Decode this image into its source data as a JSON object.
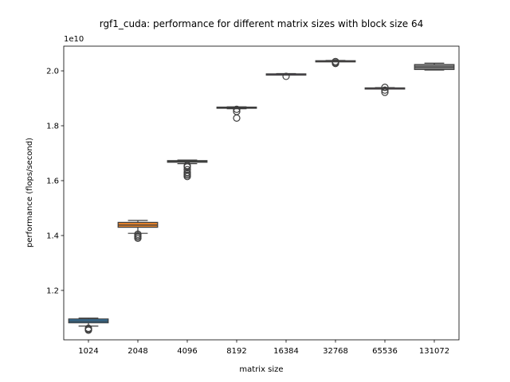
{
  "chart_data": {
    "type": "box",
    "title": "rgf1_cuda: performance for different matrix sizes with block size 64",
    "xlabel": "matrix size",
    "ylabel": "performance (flops/second)",
    "y_offset_label": "1e10",
    "y_scale": 10000000000,
    "ylim": [
      1.02,
      2.09
    ],
    "yticks": [
      {
        "value": 1.2,
        "label": "1.2"
      },
      {
        "value": 1.4,
        "label": "1.4"
      },
      {
        "value": 1.6,
        "label": "1.6"
      },
      {
        "value": 1.8,
        "label": "1.8"
      },
      {
        "value": 2.0,
        "label": "2.0"
      }
    ],
    "grid": false,
    "categories": [
      "1024",
      "2048",
      "4096",
      "8192",
      "16384",
      "32768",
      "65536",
      "131072"
    ],
    "boxes": [
      {
        "category": "1024",
        "color": "#3274a1",
        "whislo": 1.07,
        "q1": 1.082,
        "med": 1.088,
        "q3": 1.096,
        "whishi": 1.099,
        "fliers": [
          1.055,
          1.058,
          1.062
        ]
      },
      {
        "category": "2048",
        "color": "#e1812c",
        "whislo": 1.408,
        "q1": 1.43,
        "med": 1.438,
        "q3": 1.448,
        "whishi": 1.455,
        "fliers": [
          1.39,
          1.395,
          1.4,
          1.405
        ]
      },
      {
        "category": "4096",
        "color": "#3a923a",
        "whislo": 1.662,
        "q1": 1.667,
        "med": 1.67,
        "q3": 1.673,
        "whishi": 1.675,
        "fliers": [
          1.615,
          1.62,
          1.625,
          1.63,
          1.64,
          1.65,
          1.655
        ]
      },
      {
        "category": "8192",
        "color": "#c03d3e",
        "whislo": 1.862,
        "q1": 1.864,
        "med": 1.866,
        "q3": 1.868,
        "whishi": 1.869,
        "fliers": [
          1.828,
          1.852,
          1.86
        ]
      },
      {
        "category": "16384",
        "color": "#9372b2",
        "whislo": 1.986,
        "q1": 1.987,
        "med": 1.988,
        "q3": 1.989,
        "whishi": 1.99,
        "fliers": [
          1.98
        ]
      },
      {
        "category": "32768",
        "color": "#845b53",
        "whislo": 2.034,
        "q1": 2.035,
        "med": 2.036,
        "q3": 2.037,
        "whishi": 2.038,
        "fliers": [
          2.027,
          2.03,
          2.034
        ]
      },
      {
        "category": "65536",
        "color": "#d684bd",
        "whislo": 1.934,
        "q1": 1.936,
        "med": 1.937,
        "q3": 1.938,
        "whishi": 1.939,
        "fliers": [
          1.922,
          1.93,
          1.94
        ]
      },
      {
        "category": "131072",
        "color": "#7f7f7f",
        "whislo": 2.003,
        "q1": 2.005,
        "med": 2.014,
        "q3": 2.023,
        "whishi": 2.028,
        "fliers": []
      }
    ]
  }
}
